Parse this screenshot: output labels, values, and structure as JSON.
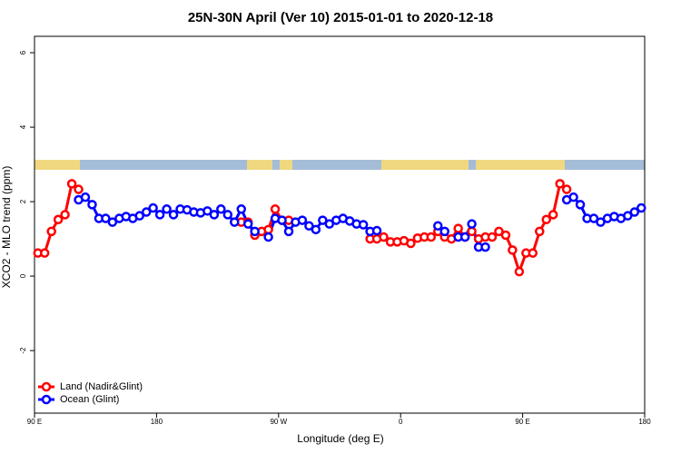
{
  "chart_data": {
    "type": "line",
    "title": "25N-30N April (Ver 10)   2015-01-01 to 2020-12-18",
    "x_label": "Longitude (deg E)",
    "y_label": "XCO2 - MLO trend (ppm)",
    "x": [
      92.5,
      97.5,
      102.5,
      107.5,
      112.5,
      117.5,
      122.5,
      127.5,
      132.5,
      137.5,
      142.5,
      147.5,
      152.5,
      157.5,
      162.5,
      167.5,
      172.5,
      177.5,
      182.5,
      187.5,
      192.5,
      197.5,
      202.5,
      207.5,
      212.5,
      217.5,
      222.5,
      227.5,
      232.5,
      237.5,
      242.5,
      247.5,
      252.5,
      257.5,
      262.5,
      267.5,
      272.5,
      277.5,
      282.5,
      287.5,
      292.5,
      297.5,
      302.5,
      307.5,
      312.5,
      317.5,
      322.5,
      327.5,
      332.5,
      337.5,
      342.5,
      347.5,
      352.5,
      357.5,
      362.5,
      367.5,
      372.5,
      377.5,
      382.5,
      387.5,
      392.5,
      397.5,
      402.5,
      407.5,
      412.5,
      417.5,
      422.5,
      427.5,
      432.5,
      437.5,
      442.5,
      447.5,
      452.5,
      457.5,
      462.5,
      467.5,
      472.5,
      477.5,
      482.5,
      487.5,
      492.5,
      497.5,
      502.5,
      507.5,
      512.5,
      517.5,
      522.5,
      527.5,
      532.5,
      537.5
    ],
    "series": [
      {
        "name": "Land (Nadir&Glint)",
        "color": "#ff0000",
        "values": [
          0.62,
          0.62,
          1.2,
          1.52,
          1.65,
          2.48,
          2.33,
          null,
          null,
          null,
          null,
          null,
          null,
          null,
          null,
          null,
          null,
          null,
          null,
          null,
          null,
          null,
          null,
          null,
          null,
          null,
          null,
          null,
          null,
          null,
          1.45,
          1.45,
          1.1,
          1.2,
          1.25,
          1.8,
          1.5,
          1.5,
          null,
          null,
          null,
          null,
          null,
          null,
          null,
          null,
          null,
          null,
          null,
          1.0,
          1.0,
          1.05,
          0.92,
          0.92,
          0.95,
          0.88,
          1.02,
          1.05,
          1.05,
          1.2,
          1.05,
          1.0,
          1.28,
          1.05,
          1.2,
          1.0,
          1.05,
          1.05,
          1.2,
          1.1,
          0.7,
          0.12,
          0.62,
          0.62,
          1.2,
          1.52,
          1.65,
          2.48,
          2.33,
          null,
          null,
          null,
          null,
          null,
          null,
          null,
          null,
          null,
          null,
          null
        ]
      },
      {
        "name": "Ocean (Glint)",
        "color": "#0000ff",
        "values": [
          null,
          null,
          null,
          null,
          null,
          null,
          2.05,
          2.12,
          1.92,
          1.55,
          1.55,
          1.45,
          1.55,
          1.6,
          1.55,
          1.62,
          1.72,
          1.83,
          1.65,
          1.8,
          1.65,
          1.8,
          1.78,
          1.72,
          1.7,
          1.75,
          1.65,
          1.8,
          1.65,
          1.45,
          1.8,
          1.4,
          1.2,
          null,
          1.05,
          1.55,
          1.5,
          1.2,
          1.45,
          1.5,
          1.35,
          1.25,
          1.5,
          1.4,
          1.5,
          1.55,
          1.48,
          1.4,
          1.38,
          1.2,
          1.22,
          null,
          null,
          null,
          null,
          null,
          null,
          null,
          null,
          1.35,
          1.2,
          null,
          1.05,
          1.05,
          1.4,
          0.78,
          0.78,
          null,
          null,
          null,
          null,
          null,
          null,
          null,
          null,
          null,
          null,
          null,
          2.05,
          2.12,
          1.92,
          1.55,
          1.55,
          1.45,
          1.55,
          1.6,
          1.55,
          1.62,
          1.72,
          1.83
        ]
      }
    ],
    "xlim": [
      90,
      540
    ],
    "xticks": [
      {
        "value": 90,
        "label": "90 E"
      },
      180,
      {
        "value": 270,
        "label": "90 W"
      },
      {
        "value": 360,
        "label": "0"
      },
      {
        "value": 450,
        "label": "90 E"
      },
      {
        "value": 540,
        "label": "180"
      }
    ],
    "ylim": [
      -3.68,
      6.44
    ],
    "yticks": [
      -2,
      0,
      2,
      4,
      6
    ],
    "legend": "bottomleft"
  }
}
